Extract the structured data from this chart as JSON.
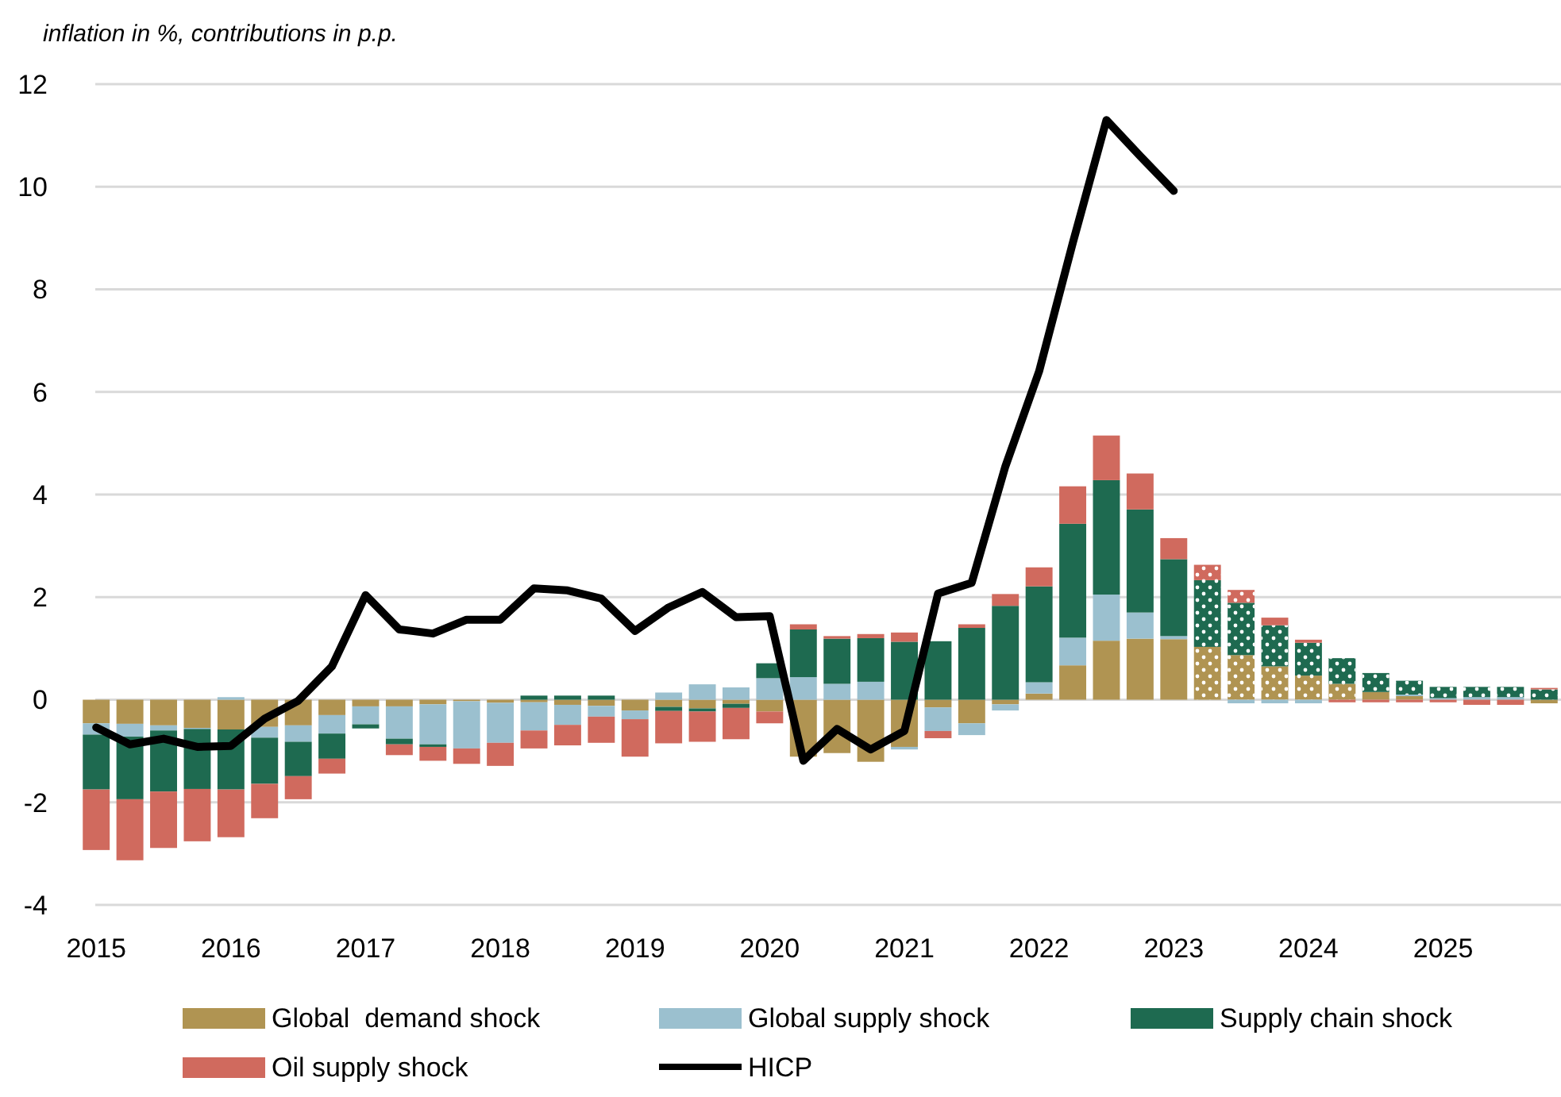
{
  "chart_data": {
    "type": "bar",
    "stacked": true,
    "ylabel": "inflation in %, contributions in p.p.",
    "categories": [
      "2015",
      null,
      null,
      null,
      "2016",
      null,
      null,
      null,
      "2017",
      null,
      null,
      null,
      "2018",
      null,
      null,
      null,
      "2019",
      null,
      null,
      null,
      "2020",
      null,
      null,
      null,
      "2021",
      null,
      null,
      null,
      "2022",
      null,
      null,
      null,
      "2023",
      null,
      null,
      null,
      "2024",
      null,
      null,
      null,
      "2025",
      null,
      null,
      null
    ],
    "series": [
      {
        "name": "Global  demand shock",
        "color": "#b09452",
        "values": [
          -0.46,
          -0.47,
          -0.5,
          -0.55,
          -0.58,
          -0.53,
          -0.5,
          -0.3,
          -0.13,
          -0.13,
          -0.09,
          -0.03,
          -0.06,
          -0.05,
          -0.1,
          -0.12,
          -0.21,
          -0.14,
          -0.17,
          -0.08,
          -0.23,
          -1.11,
          -1.04,
          -1.21,
          -0.92,
          -0.15,
          -0.46,
          -0.09,
          0.12,
          0.67,
          1.15,
          1.19,
          1.18,
          1.03,
          0.87,
          0.65,
          0.47,
          0.31,
          0.15,
          0.07,
          0,
          0,
          0,
          -0.07
        ]
      },
      {
        "name": "Global supply shock",
        "color": "#9bc0cf",
        "values": [
          -0.22,
          -0.25,
          -0.1,
          -0.02,
          0.05,
          -0.21,
          -0.32,
          -0.36,
          -0.35,
          -0.63,
          -0.78,
          -0.92,
          -0.78,
          -0.55,
          -0.39,
          -0.21,
          -0.17,
          0.14,
          0.3,
          0.24,
          0.42,
          0.44,
          0.31,
          0.35,
          -0.05,
          -0.46,
          -0.23,
          -0.12,
          0.22,
          0.54,
          0.9,
          0.51,
          0.06,
          0,
          -0.07,
          -0.07,
          -0.07,
          0,
          0,
          0.03,
          0.03,
          0.05,
          0.05,
          0
        ]
      },
      {
        "name": "Supply chain shock",
        "color": "#1e6a50",
        "values": [
          -1.07,
          -1.22,
          -1.19,
          -1.17,
          -1.17,
          -0.9,
          -0.67,
          -0.49,
          -0.08,
          -0.11,
          -0.05,
          0,
          0,
          0.08,
          0.08,
          0.08,
          0,
          -0.08,
          -0.06,
          -0.08,
          0.29,
          0.93,
          0.88,
          0.85,
          1.13,
          1.14,
          1.4,
          1.83,
          1.87,
          2.22,
          2.23,
          2.01,
          1.5,
          1.3,
          1.02,
          0.8,
          0.64,
          0.5,
          0.37,
          0.27,
          0.22,
          0.2,
          0.2,
          0.2
        ]
      },
      {
        "name": "Oil supply shock",
        "color": "#d06a5e",
        "values": [
          -1.18,
          -1.19,
          -1.1,
          -1.02,
          -0.93,
          -0.67,
          -0.45,
          -0.29,
          0,
          -0.21,
          -0.27,
          -0.3,
          -0.45,
          -0.35,
          -0.4,
          -0.51,
          -0.73,
          -0.63,
          -0.59,
          -0.61,
          -0.23,
          0.1,
          0.05,
          0.08,
          0.18,
          -0.14,
          0.07,
          0.23,
          0.37,
          0.73,
          0.87,
          0.7,
          0.41,
          0.3,
          0.25,
          0.15,
          0.06,
          -0.05,
          -0.05,
          -0.05,
          -0.05,
          -0.1,
          -0.1,
          0.03
        ]
      },
      {
        "name": "HICP",
        "type": "line",
        "color": "#000000",
        "values": [
          -0.54,
          -0.87,
          -0.76,
          -0.92,
          -0.9,
          -0.37,
          -0.02,
          0.65,
          2.04,
          1.37,
          1.29,
          1.56,
          1.56,
          2.17,
          2.13,
          1.97,
          1.34,
          1.8,
          2.1,
          1.61,
          1.63,
          -1.19,
          -0.57,
          -0.97,
          -0.61,
          2.07,
          2.28,
          4.55,
          6.4,
          8.9,
          11.3,
          10.6,
          9.92,
          null,
          null,
          null,
          null,
          null,
          null,
          null,
          null,
          null,
          null,
          null
        ]
      }
    ],
    "ylim": [
      -4,
      12
    ],
    "yticks": [
      -4,
      -2,
      0,
      2,
      4,
      6,
      8,
      10,
      12
    ],
    "grid": "y",
    "legend": "bottom"
  }
}
